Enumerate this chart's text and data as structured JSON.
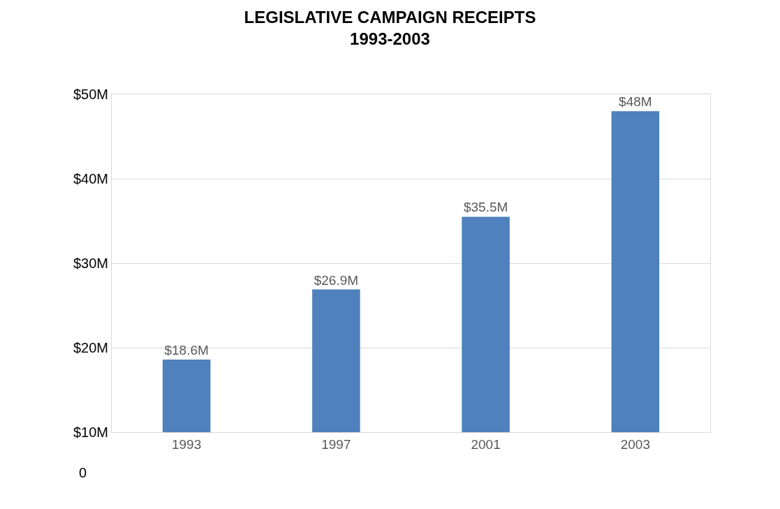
{
  "chart_data": {
    "type": "bar",
    "title": "LEGISLATIVE CAMPAIGN RECEIPTS\n1993-2003",
    "categories": [
      "1993",
      "1997",
      "2001",
      "2003"
    ],
    "series": [
      {
        "color": "#4f81bd",
        "values": [
          18.6,
          26.9,
          35.5,
          48
        ]
      }
    ],
    "value_labels": [
      "$18.6M",
      "$26.9M",
      "$35.5M",
      "$48M"
    ],
    "ylim": [
      10,
      50
    ],
    "yticks": [
      {
        "value": 10,
        "label": "$10M"
      },
      {
        "value": 20,
        "label": "$20M"
      },
      {
        "value": 30,
        "label": "$30M"
      },
      {
        "value": 40,
        "label": "$40M"
      },
      {
        "value": 50,
        "label": "$50M"
      }
    ],
    "grid": "y",
    "annotations": [
      "0"
    ]
  }
}
